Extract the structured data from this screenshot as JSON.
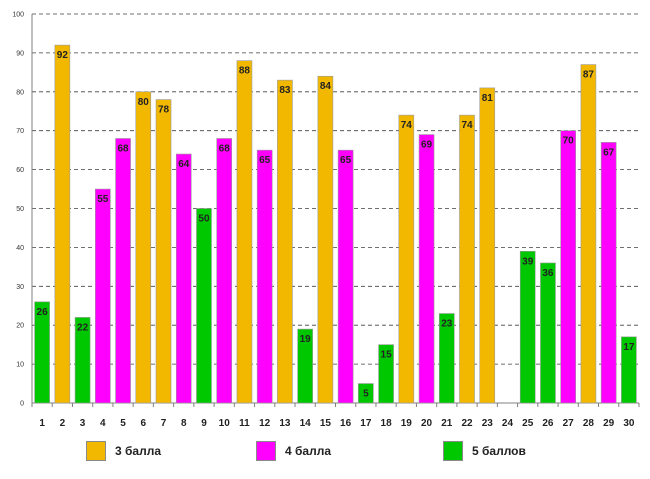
{
  "chart_data": {
    "type": "bar",
    "title": "",
    "xlabel": "",
    "ylabel": "",
    "ylim": [
      0,
      100
    ],
    "ytick_step": 10,
    "grid": true,
    "legend_position": "bottom",
    "categories": [
      "1",
      "2",
      "3",
      "4",
      "5",
      "6",
      "7",
      "8",
      "9",
      "10",
      "11",
      "12",
      "13",
      "14",
      "15",
      "16",
      "17",
      "18",
      "19",
      "20",
      "21",
      "22",
      "23",
      "24",
      "25",
      "26",
      "27",
      "28",
      "29",
      "30"
    ],
    "values": [
      26,
      92,
      22,
      55,
      68,
      80,
      78,
      64,
      50,
      68,
      88,
      65,
      83,
      19,
      84,
      65,
      5,
      15,
      74,
      69,
      23,
      74,
      81,
      null,
      39,
      36,
      70,
      87,
      67,
      17
    ],
    "groups": [
      "5",
      "3",
      "5",
      "4",
      "4",
      "3",
      "3",
      "4",
      "5",
      "4",
      "3",
      "4",
      "3",
      "5",
      "3",
      "4",
      "5",
      "5",
      "3",
      "4",
      "5",
      "3",
      "3",
      null,
      "5",
      "5",
      "4",
      "3",
      "4",
      "5"
    ],
    "series": [
      {
        "key": "3",
        "name": "3 балла",
        "color": "#f2b800"
      },
      {
        "key": "4",
        "name": "4 балла",
        "color": "#ff00ff"
      },
      {
        "key": "5",
        "name": "5 баллов",
        "color": "#00c800"
      }
    ]
  }
}
